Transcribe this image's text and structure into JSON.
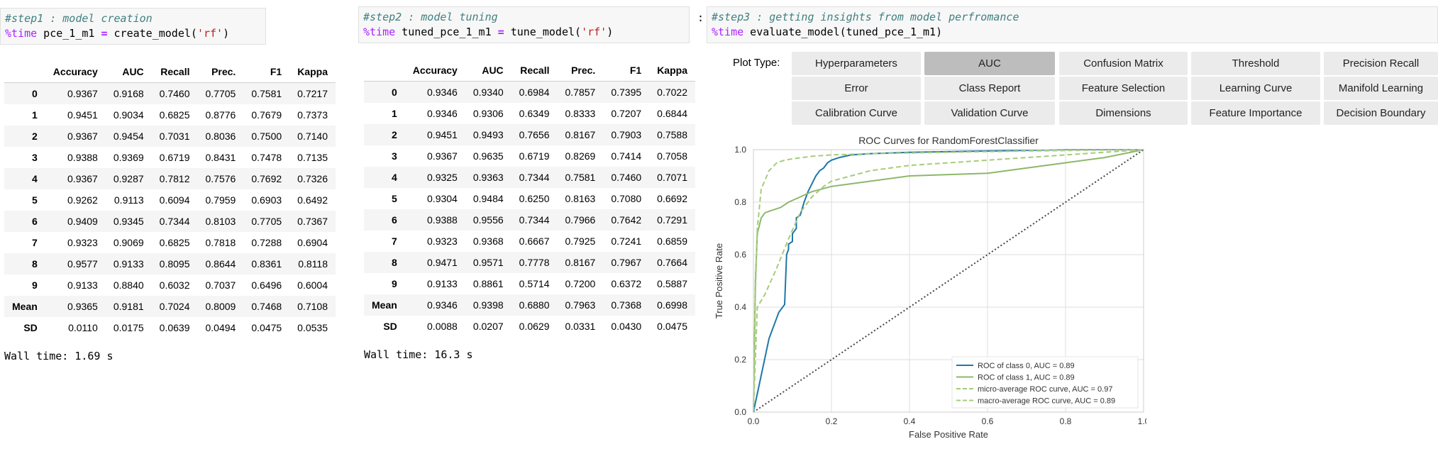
{
  "step1": {
    "comment": "#step1 : model creation",
    "magic": "%time",
    "code_pre": " pce_1_m1 ",
    "code_eq": "=",
    "code_fn": " create_model(",
    "code_str": "'rf'",
    "code_end": ")",
    "wall_time": "Wall time: 1.69 s",
    "table": {
      "headers": [
        "Accuracy",
        "AUC",
        "Recall",
        "Prec.",
        "F1",
        "Kappa"
      ],
      "rows": [
        {
          "idx": "0",
          "vals": [
            "0.9367",
            "0.9168",
            "0.7460",
            "0.7705",
            "0.7581",
            "0.7217"
          ]
        },
        {
          "idx": "1",
          "vals": [
            "0.9451",
            "0.9034",
            "0.6825",
            "0.8776",
            "0.7679",
            "0.7373"
          ]
        },
        {
          "idx": "2",
          "vals": [
            "0.9367",
            "0.9454",
            "0.7031",
            "0.8036",
            "0.7500",
            "0.7140"
          ]
        },
        {
          "idx": "3",
          "vals": [
            "0.9388",
            "0.9369",
            "0.6719",
            "0.8431",
            "0.7478",
            "0.7135"
          ]
        },
        {
          "idx": "4",
          "vals": [
            "0.9367",
            "0.9287",
            "0.7812",
            "0.7576",
            "0.7692",
            "0.7326"
          ]
        },
        {
          "idx": "5",
          "vals": [
            "0.9262",
            "0.9113",
            "0.6094",
            "0.7959",
            "0.6903",
            "0.6492"
          ]
        },
        {
          "idx": "6",
          "vals": [
            "0.9409",
            "0.9345",
            "0.7344",
            "0.8103",
            "0.7705",
            "0.7367"
          ]
        },
        {
          "idx": "7",
          "vals": [
            "0.9323",
            "0.9069",
            "0.6825",
            "0.7818",
            "0.7288",
            "0.6904"
          ]
        },
        {
          "idx": "8",
          "vals": [
            "0.9577",
            "0.9133",
            "0.8095",
            "0.8644",
            "0.8361",
            "0.8118"
          ]
        },
        {
          "idx": "9",
          "vals": [
            "0.9133",
            "0.8840",
            "0.6032",
            "0.7037",
            "0.6496",
            "0.6004"
          ]
        },
        {
          "idx": "Mean",
          "vals": [
            "0.9365",
            "0.9181",
            "0.7024",
            "0.8009",
            "0.7468",
            "0.7108"
          ]
        },
        {
          "idx": "SD",
          "vals": [
            "0.0110",
            "0.0175",
            "0.0639",
            "0.0494",
            "0.0475",
            "0.0535"
          ]
        }
      ]
    }
  },
  "step2": {
    "comment": "#step2 : model tuning",
    "magic": "%time",
    "code_pre": " tuned_pce_1_m1 ",
    "code_eq": "=",
    "code_fn": " tune_model(",
    "code_str": "'rf'",
    "code_end": ")",
    "wall_time": "Wall time: 16.3 s",
    "table": {
      "headers": [
        "Accuracy",
        "AUC",
        "Recall",
        "Prec.",
        "F1",
        "Kappa"
      ],
      "rows": [
        {
          "idx": "0",
          "vals": [
            "0.9346",
            "0.9340",
            "0.6984",
            "0.7857",
            "0.7395",
            "0.7022"
          ]
        },
        {
          "idx": "1",
          "vals": [
            "0.9346",
            "0.9306",
            "0.6349",
            "0.8333",
            "0.7207",
            "0.6844"
          ]
        },
        {
          "idx": "2",
          "vals": [
            "0.9451",
            "0.9493",
            "0.7656",
            "0.8167",
            "0.7903",
            "0.7588"
          ]
        },
        {
          "idx": "3",
          "vals": [
            "0.9367",
            "0.9635",
            "0.6719",
            "0.8269",
            "0.7414",
            "0.7058"
          ]
        },
        {
          "idx": "4",
          "vals": [
            "0.9325",
            "0.9363",
            "0.7344",
            "0.7581",
            "0.7460",
            "0.7071"
          ]
        },
        {
          "idx": "5",
          "vals": [
            "0.9304",
            "0.9484",
            "0.6250",
            "0.8163",
            "0.7080",
            "0.6692"
          ]
        },
        {
          "idx": "6",
          "vals": [
            "0.9388",
            "0.9556",
            "0.7344",
            "0.7966",
            "0.7642",
            "0.7291"
          ]
        },
        {
          "idx": "7",
          "vals": [
            "0.9323",
            "0.9368",
            "0.6667",
            "0.7925",
            "0.7241",
            "0.6859"
          ]
        },
        {
          "idx": "8",
          "vals": [
            "0.9471",
            "0.9571",
            "0.7778",
            "0.8167",
            "0.7967",
            "0.7664"
          ]
        },
        {
          "idx": "9",
          "vals": [
            "0.9133",
            "0.8861",
            "0.5714",
            "0.7200",
            "0.6372",
            "0.5887"
          ]
        },
        {
          "idx": "Mean",
          "vals": [
            "0.9346",
            "0.9398",
            "0.6880",
            "0.7963",
            "0.7368",
            "0.6998"
          ]
        },
        {
          "idx": "SD",
          "vals": [
            "0.0088",
            "0.0207",
            "0.0629",
            "0.0331",
            "0.0430",
            "0.0475"
          ]
        }
      ]
    }
  },
  "step3": {
    "colon": ":",
    "comment": "#step3 : getting insights from model perfromance",
    "magic": "%time",
    "code": " evaluate_model(tuned_pce_1_m1)",
    "plot_type_label": "Plot Type:",
    "active_button": "AUC",
    "buttons": [
      [
        "Hyperparameters",
        "AUC",
        "Confusion Matrix",
        "Threshold",
        "Precision Recall"
      ],
      [
        "Error",
        "Class Report",
        "Feature Selection",
        "Learning Curve",
        "Manifold Learning"
      ],
      [
        "Calibration Curve",
        "Validation Curve",
        "Dimensions",
        "Feature Importance",
        "Decision Boundary"
      ]
    ]
  },
  "chart_data": {
    "type": "line",
    "title": "ROC Curves for RandomForestClassifier",
    "xlabel": "False Positive Rate",
    "ylabel": "True Positive Rate",
    "xlim": [
      0.0,
      1.0
    ],
    "ylim": [
      0.0,
      1.0
    ],
    "xticks": [
      "0.0",
      "0.2",
      "0.4",
      "0.6",
      "0.8",
      "1.0"
    ],
    "yticks": [
      "0.0",
      "0.2",
      "0.4",
      "0.6",
      "0.8",
      "1.0"
    ],
    "grid": true,
    "legend_position": "lower-right",
    "series": [
      {
        "name": "ROC of class 0, AUC = 0.89",
        "color": "#1f77a8",
        "style": "solid",
        "x": [
          0,
          0.04,
          0.06,
          0.065,
          0.08,
          0.085,
          0.09,
          0.09,
          0.1,
          0.1,
          0.11,
          0.11,
          0.12,
          0.13,
          0.14,
          0.15,
          0.16,
          0.17,
          0.18,
          0.19,
          0.2,
          0.22,
          0.25,
          0.3,
          0.4,
          0.6,
          0.8,
          1.0
        ],
        "y": [
          0,
          0.28,
          0.36,
          0.38,
          0.41,
          0.6,
          0.62,
          0.64,
          0.65,
          0.68,
          0.7,
          0.74,
          0.75,
          0.8,
          0.84,
          0.87,
          0.9,
          0.92,
          0.93,
          0.95,
          0.96,
          0.97,
          0.98,
          0.985,
          0.99,
          0.995,
          1.0,
          1.0
        ]
      },
      {
        "name": "ROC of class 1, AUC = 0.89",
        "color": "#8cb86a",
        "style": "solid",
        "x": [
          0,
          0.005,
          0.01,
          0.02,
          0.03,
          0.05,
          0.07,
          0.09,
          0.12,
          0.15,
          0.2,
          0.25,
          0.4,
          0.6,
          0.7,
          0.8,
          0.9,
          1.0
        ],
        "y": [
          0,
          0.5,
          0.68,
          0.74,
          0.76,
          0.77,
          0.78,
          0.8,
          0.82,
          0.84,
          0.86,
          0.87,
          0.9,
          0.91,
          0.93,
          0.95,
          0.97,
          1.0
        ]
      },
      {
        "name": "micro-average ROC curve, AUC = 0.97",
        "color": "#a6cc7a",
        "style": "dashed",
        "x": [
          0,
          0.005,
          0.01,
          0.02,
          0.04,
          0.06,
          0.08,
          0.1,
          0.15,
          0.2,
          0.3,
          0.5,
          0.7,
          1.0
        ],
        "y": [
          0,
          0.45,
          0.7,
          0.85,
          0.92,
          0.95,
          0.96,
          0.965,
          0.975,
          0.98,
          0.985,
          0.99,
          0.995,
          1.0
        ]
      },
      {
        "name": "macro-average ROC curve, AUC = 0.89",
        "color": "#a6cc7a",
        "style": "dashed",
        "x": [
          0,
          0.01,
          0.03,
          0.06,
          0.09,
          0.12,
          0.15,
          0.18,
          0.2,
          0.25,
          0.3,
          0.4,
          0.5,
          0.6,
          0.8,
          1.0
        ],
        "y": [
          0,
          0.4,
          0.45,
          0.55,
          0.66,
          0.76,
          0.82,
          0.86,
          0.88,
          0.9,
          0.92,
          0.94,
          0.95,
          0.96,
          0.98,
          1.0
        ]
      },
      {
        "name": "",
        "color": "#444444",
        "style": "dotted",
        "x": [
          0,
          1
        ],
        "y": [
          0,
          1
        ]
      }
    ]
  }
}
